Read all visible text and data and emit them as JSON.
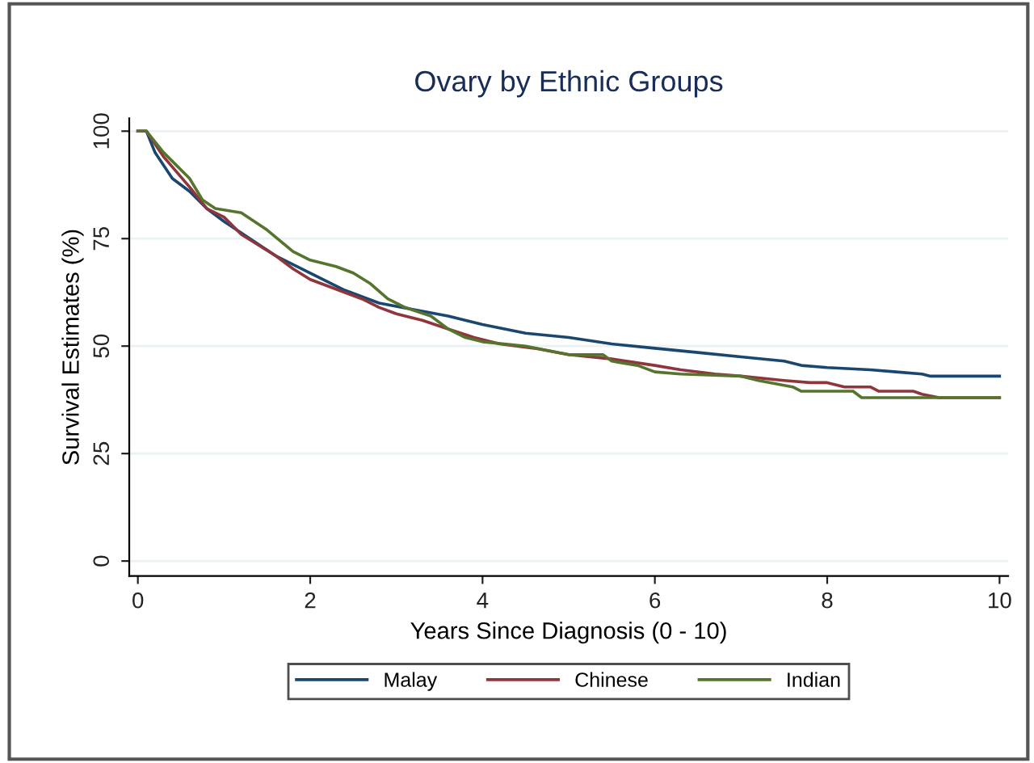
{
  "chart_data": {
    "type": "line",
    "title": "Ovary by Ethnic Groups",
    "xlabel": "Years Since Diagnosis (0 - 10)",
    "ylabel": "Survival Estimates (%)",
    "xlim": [
      -0.1,
      10.1
    ],
    "xticks": [
      0,
      2,
      4,
      6,
      8,
      10
    ],
    "ylim": [
      -3.5,
      103
    ],
    "yticks": [
      0,
      25,
      50,
      75,
      100
    ],
    "grid": "y",
    "legend": "bottom",
    "series": [
      {
        "name": "Malay",
        "color": "#1a476f",
        "x": [
          0,
          0.1,
          0.2,
          0.4,
          0.6,
          0.8,
          1.0,
          1.3,
          1.6,
          2.0,
          2.4,
          2.8,
          3.2,
          3.6,
          4.0,
          4.5,
          5.0,
          5.5,
          6,
          6.5,
          7,
          7.5,
          7.7,
          8,
          8.5,
          8.8,
          9.1,
          9.2,
          10
        ],
        "values": [
          100,
          100,
          95,
          89,
          86,
          82,
          79,
          75,
          71,
          67,
          63,
          60,
          58.5,
          57,
          55,
          53,
          52,
          50.5,
          49.5,
          48.5,
          47.5,
          46.5,
          45.5,
          45,
          44.5,
          44,
          43.5,
          43,
          43
        ]
      },
      {
        "name": "Chinese",
        "color": "#90353b",
        "x": [
          0,
          0.1,
          0.3,
          0.6,
          0.8,
          1.0,
          1.2,
          1.6,
          1.8,
          2.0,
          2.4,
          2.6,
          2.8,
          3.0,
          3.3,
          3.6,
          3.9,
          4.2,
          4.6,
          5.0,
          5.5,
          6,
          6.3,
          6.7,
          7,
          7.5,
          7.8,
          8,
          8.2,
          8.5,
          8.6,
          9,
          9.1,
          9.3,
          10
        ],
        "values": [
          100,
          100,
          94,
          87,
          82,
          80,
          76,
          71,
          68,
          65.5,
          62.5,
          61,
          59,
          57.5,
          56,
          54,
          52,
          50.5,
          49.5,
          48,
          47,
          45.5,
          44.5,
          43.5,
          43,
          42,
          41.5,
          41.5,
          40.5,
          40.5,
          39.5,
          39.5,
          38.8,
          38,
          38
        ]
      },
      {
        "name": "Indian",
        "color": "#55752f",
        "x": [
          0,
          0.1,
          0.3,
          0.6,
          0.75,
          0.9,
          1.2,
          1.5,
          1.8,
          2.0,
          2.3,
          2.5,
          2.7,
          2.9,
          3.1,
          3.4,
          3.6,
          3.8,
          4.0,
          4.5,
          5.0,
          5.4,
          5.5,
          5.8,
          6,
          6.3,
          7,
          7.2,
          7.6,
          7.7,
          8.0,
          8.3,
          8.4,
          10
        ],
        "values": [
          100,
          100,
          95,
          89,
          84,
          82,
          81,
          77,
          72,
          70,
          68.5,
          67,
          64.5,
          61,
          59,
          57,
          54,
          52,
          51,
          50,
          48,
          48,
          46.5,
          45.5,
          44,
          43.5,
          43,
          42,
          40.5,
          39.5,
          39.5,
          39.5,
          38,
          38
        ]
      }
    ]
  }
}
